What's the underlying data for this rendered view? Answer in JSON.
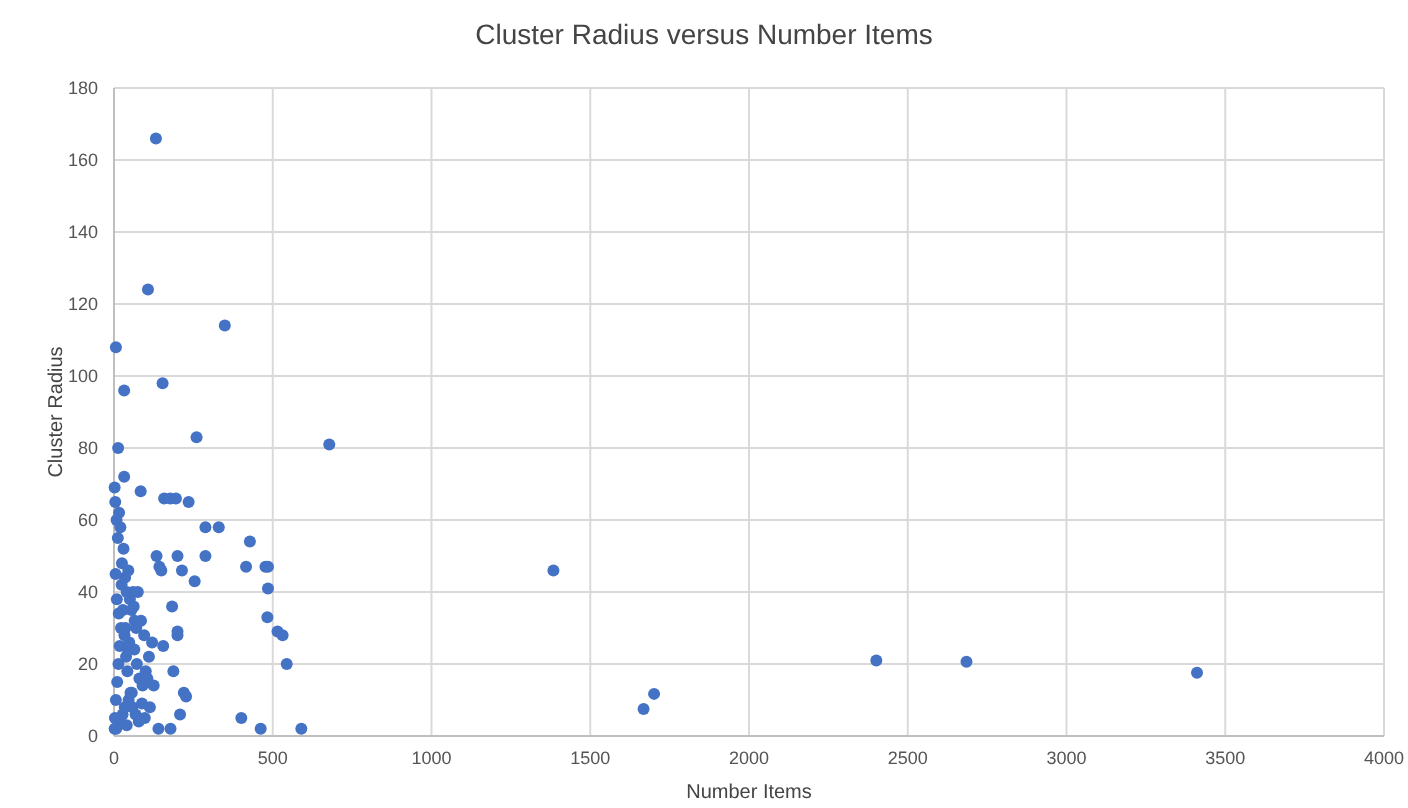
{
  "chart_data": {
    "type": "scatter",
    "title": "Cluster Radius versus Number Items",
    "xlabel": "Number Items",
    "ylabel": "Cluster Radius",
    "xlim": [
      0,
      4000
    ],
    "ylim": [
      0,
      180
    ],
    "xticks": [
      0,
      500,
      1000,
      1500,
      2000,
      2500,
      3000,
      3500,
      4000
    ],
    "yticks": [
      0,
      20,
      40,
      60,
      80,
      100,
      120,
      140,
      160,
      180
    ],
    "grid": true,
    "marker": "circle",
    "series": [
      {
        "color": "#4472c4",
        "x": [
          132,
          107,
          349,
          6,
          32,
          153,
          13,
          260,
          678,
          32,
          84,
          158,
          177,
          195,
          235,
          288,
          330,
          428,
          134,
          200,
          288,
          416,
          477,
          485,
          143,
          149,
          214,
          254,
          485,
          483,
          515,
          531,
          544,
          183,
          200,
          200,
          155,
          187,
          220,
          227,
          208,
          113,
          97,
          178,
          401,
          462,
          590,
          1384,
          1668,
          1701,
          2401,
          2685,
          3411,
          2,
          4,
          8,
          12,
          16,
          20,
          25,
          30,
          35,
          40,
          45,
          50,
          55,
          60,
          65,
          70,
          3,
          6,
          10,
          14,
          18,
          22,
          28,
          33,
          38,
          42,
          48,
          52,
          58,
          64,
          72,
          80,
          90,
          100,
          110,
          120,
          5,
          9,
          15,
          24,
          36,
          44,
          62,
          75,
          85,
          95,
          105,
          125,
          140,
          2,
          7,
          40,
          19,
          27,
          34,
          46,
          56,
          68,
          78,
          88
        ],
        "values": [
          166,
          124,
          114,
          108,
          96,
          98,
          80,
          83,
          81,
          72,
          68,
          66,
          66,
          66,
          65,
          58,
          58,
          54,
          50,
          50,
          50,
          47,
          47,
          47,
          47,
          46,
          46,
          43,
          41,
          33,
          29,
          28,
          20,
          36,
          29,
          28,
          25,
          18,
          12,
          11,
          6,
          8,
          5,
          2,
          5,
          2,
          2,
          46,
          7.5,
          11.7,
          21,
          20.6,
          17.6,
          69,
          65,
          60,
          55,
          62,
          58,
          48,
          52,
          44,
          40,
          46,
          38,
          35,
          40,
          32,
          30,
          5,
          10,
          15,
          20,
          25,
          30,
          35,
          28,
          22,
          18,
          26,
          12,
          8,
          24,
          20,
          16,
          14,
          18,
          22,
          26,
          45,
          38,
          34,
          42,
          30,
          24,
          36,
          40,
          32,
          28,
          16,
          14,
          2,
          2,
          2,
          3,
          4,
          6,
          8,
          10,
          12,
          6,
          4,
          9
        ]
      }
    ]
  }
}
